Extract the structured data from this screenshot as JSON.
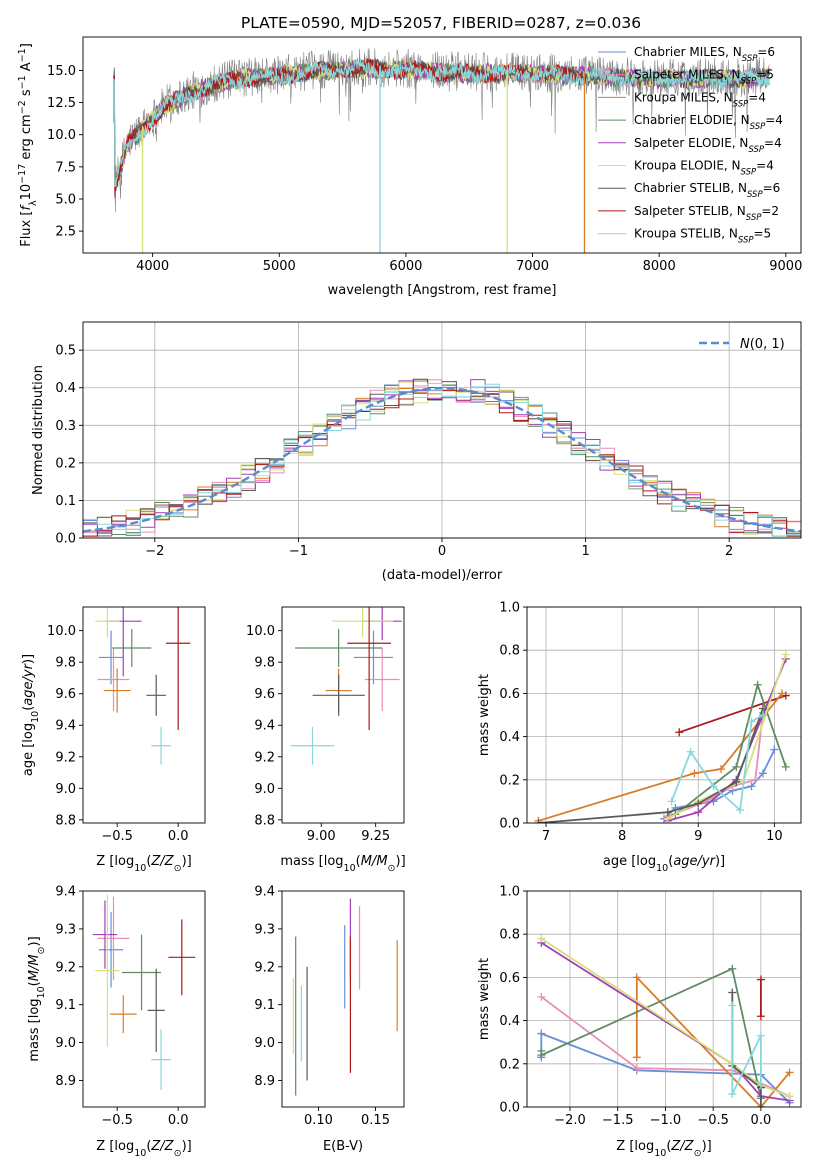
{
  "figure_title": "PLATE=0590, MJD=52057, FIBERID=0287, z=0.036",
  "colors": {
    "chabrier_miles": "#6a8fd6",
    "salpeter_miles": "#e88fb8",
    "kroupa_miles": "#d97c2a",
    "chabrier_elodie": "#5f8c64",
    "salpeter_elodie": "#a23fb5",
    "kroupa_elodie": "#d6e07a",
    "chabrier_stelib": "#5a5a5a",
    "salpeter_stelib": "#b01818",
    "kroupa_stelib": "#86d8dc",
    "normal_curve": "#5a8ad0",
    "grid": "#b0b0b0"
  },
  "chart_data": [
    {
      "id": "spectrum",
      "type": "line",
      "title": "PLATE=0590, MJD=52057, FIBERID=0287, z=0.036",
      "xlabel": "wavelength [Angstrom, rest frame]",
      "ylabel": "Flux [f_λ 10^-17 erg cm^-2 s^-1 A^-1]",
      "xlim": [
        3450,
        9120
      ],
      "ylim": [
        0.8,
        17.6
      ],
      "xticks": [
        4000,
        5000,
        6000,
        7000,
        8000,
        9000
      ],
      "yticks": [
        2.5,
        5.0,
        7.5,
        10.0,
        12.5,
        15.0
      ],
      "grid": false,
      "legend_loc": "upper right",
      "legend": [
        {
          "label": "Chabrier MILES, N",
          "sub": "SSP",
          "suffix": "=6",
          "color": "#6a8fd6"
        },
        {
          "label": "Salpeter MILES, N",
          "sub": "SSP",
          "suffix": "=5",
          "color": "#e88fb8"
        },
        {
          "label": "Kroupa MILES, N",
          "sub": "SSP",
          "suffix": "=4",
          "color": "#d97c2a"
        },
        {
          "label": "Chabrier ELODIE, N",
          "sub": "SSP",
          "suffix": "=4",
          "color": "#5f8c64"
        },
        {
          "label": "Salpeter ELODIE, N",
          "sub": "SSP",
          "suffix": "=4",
          "color": "#a23fb5"
        },
        {
          "label": "Kroupa ELODIE, N",
          "sub": "SSP",
          "suffix": "=4",
          "color": "#d6e07a"
        },
        {
          "label": "Chabrier STELIB, N",
          "sub": "SSP",
          "suffix": "=6",
          "color": "#5a5a5a"
        },
        {
          "label": "Salpeter STELIB, N",
          "sub": "SSP",
          "suffix": "=2",
          "color": "#b01818"
        },
        {
          "label": "Kroupa STELIB, N",
          "sub": "SSP",
          "suffix": "=5",
          "color": "#86d8dc"
        }
      ],
      "observed": {
        "color": "#808080",
        "x_range": [
          3690,
          8870
        ],
        "envelope": [
          [
            3700,
            6.0
          ],
          [
            3800,
            9.5
          ],
          [
            3900,
            10.5
          ],
          [
            4000,
            11.5
          ],
          [
            4100,
            12.5
          ],
          [
            4200,
            13.0
          ],
          [
            4300,
            13.5
          ],
          [
            4500,
            14.2
          ],
          [
            4700,
            14.6
          ],
          [
            5000,
            14.8
          ],
          [
            5300,
            15.2
          ],
          [
            5600,
            15.4
          ],
          [
            6000,
            15.3
          ],
          [
            6500,
            15.0
          ],
          [
            7000,
            15.0
          ],
          [
            7500,
            14.8
          ],
          [
            8000,
            14.6
          ],
          [
            8500,
            14.6
          ],
          [
            8870,
            14.7
          ]
        ],
        "noise": 1.4
      },
      "models": [
        {
          "color": "#6a8fd6",
          "x_range": [
            3690,
            8870
          ]
        },
        {
          "color": "#e88fb8",
          "x_range": [
            3690,
            8870
          ]
        },
        {
          "color": "#d97c2a",
          "x_range": [
            3690,
            7420
          ],
          "drop_at": 7410
        },
        {
          "color": "#5f8c64",
          "x_range": [
            3690,
            8870
          ]
        },
        {
          "color": "#a23fb5",
          "x_range": [
            3690,
            8870
          ]
        },
        {
          "color": "#d6e07a",
          "x_range": [
            3690,
            8870
          ],
          "gap": [
            6790,
            6810
          ]
        },
        {
          "color": "#5a5a5a",
          "x_range": [
            3690,
            8870
          ]
        },
        {
          "color": "#b01818",
          "x_range": [
            3690,
            7420
          ]
        },
        {
          "color": "#86d8dc",
          "x_range": [
            3690,
            8870
          ],
          "gap": [
            5790,
            5800
          ]
        }
      ],
      "vertical_drops": [
        {
          "x": 3920,
          "color": "#d6e07a"
        },
        {
          "x": 5795,
          "color": "#86d8dc"
        },
        {
          "x": 6800,
          "color": "#d6e07a"
        },
        {
          "x": 7410,
          "color": "#d97c2a"
        }
      ]
    },
    {
      "id": "residuals",
      "type": "histogram",
      "xlabel": "(data-model)/error",
      "ylabel": "Normed distribution",
      "xlim": [
        -2.5,
        2.5
      ],
      "ylim": [
        0,
        0.575
      ],
      "xticks": [
        -2,
        -1,
        0,
        1,
        2
      ],
      "yticks": [
        0.0,
        0.1,
        0.2,
        0.3,
        0.4,
        0.5
      ],
      "grid": true,
      "legend": [
        {
          "label": "N(0,1)",
          "color": "#5a8ad0",
          "style": "dashed"
        }
      ],
      "legend_loc": "upper right",
      "bin_width": 0.1,
      "bin_start": -2.5,
      "series": [
        {
          "name": "Chabrier MILES",
          "color": "#6a8fd6"
        },
        {
          "name": "Salpeter MILES",
          "color": "#e88fb8"
        },
        {
          "name": "Kroupa MILES",
          "color": "#d97c2a"
        },
        {
          "name": "Chabrier ELODIE",
          "color": "#5f8c64"
        },
        {
          "name": "Salpeter ELODIE",
          "color": "#a23fb5"
        },
        {
          "name": "Kroupa ELODIE",
          "color": "#d6e07a"
        },
        {
          "name": "Chabrier STELIB",
          "color": "#5a5a5a"
        },
        {
          "name": "Salpeter STELIB",
          "color": "#b01818"
        },
        {
          "name": "Kroupa STELIB",
          "color": "#86d8dc"
        }
      ]
    },
    {
      "id": "age_vs_Z",
      "type": "errorbar",
      "xlabel": "Z [log10(Z/Z☉)]",
      "ylabel": "age [log10(age/yr)]",
      "xlim": [
        -0.78,
        0.22
      ],
      "ylim": [
        8.78,
        10.15
      ],
      "xticks": [
        -0.5,
        0.0
      ],
      "yticks": [
        8.8,
        9.0,
        9.2,
        9.4,
        9.6,
        9.8,
        10.0
      ],
      "points": [
        {
          "x": -0.55,
          "y": 9.83,
          "xerr": 0.1,
          "yerr": 0.17,
          "color": "#6a8fd6"
        },
        {
          "x": -0.53,
          "y": 9.69,
          "xerr": 0.13,
          "yerr": 0.2,
          "color": "#e88fb8"
        },
        {
          "x": -0.5,
          "y": 9.62,
          "xerr": 0.11,
          "yerr": 0.14,
          "color": "#d97c2a"
        },
        {
          "x": -0.38,
          "y": 9.89,
          "xerr": 0.16,
          "yerr": 0.12,
          "color": "#5f8c64"
        },
        {
          "x": -0.45,
          "y": 10.06,
          "xerr": 0.15,
          "yerr": 0.35,
          "color": "#a23fb5"
        },
        {
          "x": -0.58,
          "y": 10.06,
          "xerr": 0.1,
          "yerr": 0.1,
          "color": "#d6e07a"
        },
        {
          "x": -0.18,
          "y": 9.59,
          "xerr": 0.08,
          "yerr": 0.13,
          "color": "#5a5a5a"
        },
        {
          "x": 0.0,
          "y": 9.92,
          "xerr": 0.1,
          "yerr": 0.55,
          "color": "#b01818"
        },
        {
          "x": -0.14,
          "y": 9.27,
          "xerr": 0.08,
          "yerr": 0.12,
          "color": "#86d8dc"
        }
      ]
    },
    {
      "id": "age_vs_mass",
      "type": "errorbar",
      "xlabel": "mass [log10(M/M☉)]",
      "ylabel": "",
      "xlim": [
        8.82,
        9.38
      ],
      "ylim": [
        8.78,
        10.15
      ],
      "xticks": [
        9.0,
        9.25
      ],
      "yticks": [
        8.8,
        9.0,
        9.2,
        9.4,
        9.6,
        9.8,
        10.0
      ],
      "points": [
        {
          "x": 9.24,
          "y": 9.83,
          "xerr": 0.09,
          "yerr": 0.17,
          "color": "#6a8fd6"
        },
        {
          "x": 9.28,
          "y": 9.69,
          "xerr": 0.08,
          "yerr": 0.2,
          "color": "#e88fb8"
        },
        {
          "x": 9.08,
          "y": 9.62,
          "xerr": 0.06,
          "yerr": 0.14,
          "color": "#d97c2a"
        },
        {
          "x": 9.08,
          "y": 9.89,
          "xerr": 0.2,
          "yerr": 0.12,
          "color": "#5f8c64"
        },
        {
          "x": 9.28,
          "y": 10.06,
          "xerr": 0.09,
          "yerr": 0.12,
          "color": "#a23fb5"
        },
        {
          "x": 9.19,
          "y": 10.06,
          "xerr": 0.14,
          "yerr": 0.1,
          "color": "#d6e07a"
        },
        {
          "x": 9.08,
          "y": 9.59,
          "xerr": 0.12,
          "yerr": 0.13,
          "color": "#5a5a5a"
        },
        {
          "x": 9.22,
          "y": 9.92,
          "xerr": 0.1,
          "yerr": 0.55,
          "color": "#b01818"
        },
        {
          "x": 8.96,
          "y": 9.27,
          "xerr": 0.1,
          "yerr": 0.12,
          "color": "#86d8dc"
        }
      ]
    },
    {
      "id": "weight_vs_age",
      "type": "line",
      "xlabel": "age  [log10(age/yr)]",
      "ylabel": "mass weight",
      "xlim": [
        6.75,
        10.35
      ],
      "ylim": [
        0,
        1.0
      ],
      "xticks": [
        7,
        8,
        9,
        10
      ],
      "yticks": [
        0.0,
        0.2,
        0.4,
        0.6,
        0.8,
        1.0
      ],
      "grid": true,
      "series": [
        {
          "color": "#b01818",
          "x": [
            8.75,
            10.15
          ],
          "y": [
            0.42,
            0.59
          ]
        },
        {
          "color": "#6a8fd6",
          "x": [
            8.55,
            8.7,
            9.2,
            9.45,
            9.7,
            9.85,
            10.0
          ],
          "y": [
            0.02,
            0.07,
            0.1,
            0.15,
            0.17,
            0.23,
            0.34
          ]
        },
        {
          "color": "#e88fb8",
          "x": [
            8.6,
            9.1,
            9.45,
            9.75,
            9.85
          ],
          "y": [
            0.03,
            0.1,
            0.17,
            0.2,
            0.51
          ]
        },
        {
          "color": "#d97c2a",
          "x": [
            6.9,
            8.95,
            9.3,
            10.1
          ],
          "y": [
            0.01,
            0.23,
            0.25,
            0.6
          ]
        },
        {
          "color": "#5f8c64",
          "x": [
            8.7,
            9.5,
            9.78,
            10.15
          ],
          "y": [
            0.04,
            0.26,
            0.64,
            0.26
          ]
        },
        {
          "color": "#a23fb5",
          "x": [
            8.6,
            9.0,
            9.5,
            10.15
          ],
          "y": [
            0.01,
            0.05,
            0.2,
            0.76
          ]
        },
        {
          "color": "#d6e07a",
          "x": [
            8.6,
            9.0,
            9.6,
            10.15
          ],
          "y": [
            0.02,
            0.1,
            0.2,
            0.78
          ]
        },
        {
          "color": "#5a5a5a",
          "x": [
            6.9,
            8.6,
            9.0,
            9.5,
            9.85
          ],
          "y": [
            0.0,
            0.05,
            0.09,
            0.19,
            0.53
          ]
        },
        {
          "color": "#86d8dc",
          "x": [
            8.65,
            8.9,
            9.2,
            9.55,
            9.7,
            9.85
          ],
          "y": [
            0.1,
            0.33,
            0.17,
            0.06,
            0.47,
            0.5
          ]
        }
      ]
    },
    {
      "id": "mass_vs_Z",
      "type": "errorbar",
      "xlabel": "Z [log10(Z/Z☉)]",
      "ylabel": "mass [log10(M/M☉)]",
      "xlim": [
        -0.78,
        0.22
      ],
      "ylim": [
        8.83,
        9.4
      ],
      "xticks": [
        -0.5,
        0.0
      ],
      "yticks": [
        8.9,
        9.0,
        9.1,
        9.2,
        9.3,
        9.4
      ],
      "points": [
        {
          "x": -0.55,
          "y": 9.245,
          "xerr": 0.1,
          "yerr": 0.1,
          "color": "#6a8fd6"
        },
        {
          "x": -0.53,
          "y": 9.275,
          "xerr": 0.13,
          "yerr": 0.11,
          "color": "#e88fb8"
        },
        {
          "x": -0.45,
          "y": 9.075,
          "xerr": 0.11,
          "yerr": 0.05,
          "color": "#d97c2a"
        },
        {
          "x": -0.3,
          "y": 9.185,
          "xerr": 0.16,
          "yerr": 0.1,
          "color": "#5f8c64"
        },
        {
          "x": -0.6,
          "y": 9.285,
          "xerr": 0.1,
          "yerr": 0.09,
          "color": "#a23fb5"
        },
        {
          "x": -0.58,
          "y": 9.19,
          "xerr": 0.1,
          "yerr": 0.2,
          "color": "#d6e07a"
        },
        {
          "x": -0.18,
          "y": 9.085,
          "xerr": 0.07,
          "yerr": 0.11,
          "color": "#5a5a5a"
        },
        {
          "x": 0.03,
          "y": 9.225,
          "xerr": 0.11,
          "yerr": 0.1,
          "color": "#b01818"
        },
        {
          "x": -0.14,
          "y": 8.955,
          "xerr": 0.08,
          "yerr": 0.08,
          "color": "#86d8dc"
        }
      ]
    },
    {
      "id": "mass_vs_ebv",
      "type": "errorbar",
      "xlabel": "E(B-V)",
      "ylabel": "",
      "xlim": [
        0.068,
        0.175
      ],
      "ylim": [
        8.83,
        9.4
      ],
      "xticks": [
        0.1,
        0.15
      ],
      "yticks": [
        8.9,
        9.0,
        9.1,
        9.2,
        9.3,
        9.4
      ],
      "points": [
        {
          "x": 0.123,
          "y": 9.2,
          "yerr": 0.11,
          "color": "#6a8fd6"
        },
        {
          "x": 0.136,
          "y": 9.25,
          "yerr": 0.11,
          "color": "#e88fb8"
        },
        {
          "x": 0.169,
          "y": 9.15,
          "yerr": 0.12,
          "color": "#d97c2a"
        },
        {
          "x": 0.08,
          "y": 9.07,
          "yerr": 0.21,
          "color": "#5f8c64"
        },
        {
          "x": 0.128,
          "y": 9.27,
          "yerr": 0.11,
          "color": "#a23fb5"
        },
        {
          "x": 0.078,
          "y": 9.07,
          "yerr": 0.1,
          "color": "#d6e07a"
        },
        {
          "x": 0.09,
          "y": 9.05,
          "yerr": 0.15,
          "color": "#5a5a5a"
        },
        {
          "x": 0.128,
          "y": 9.1,
          "yerr": 0.18,
          "color": "#b01818"
        },
        {
          "x": 0.085,
          "y": 9.05,
          "yerr": 0.1,
          "color": "#86d8dc"
        }
      ]
    },
    {
      "id": "weight_vs_Z",
      "type": "line",
      "xlabel": "Z [log10(Z/Z☉)]",
      "ylabel": "mass weight",
      "xlim": [
        -2.45,
        0.42
      ],
      "ylim": [
        0,
        1.0
      ],
      "xticks": [
        -2.0,
        -1.5,
        -1.0,
        -0.5,
        0.0
      ],
      "yticks": [
        0.0,
        0.2,
        0.4,
        0.6,
        0.8,
        1.0
      ],
      "grid": true,
      "series": [
        {
          "color": "#b01818",
          "x": [
            0.0,
            0.0
          ],
          "y": [
            0.42,
            0.59
          ]
        },
        {
          "color": "#6a8fd6",
          "x": [
            -2.3,
            -2.3,
            -1.3,
            0.0,
            0.3
          ],
          "y": [
            0.23,
            0.34,
            0.17,
            0.15,
            0.02
          ]
        },
        {
          "color": "#e88fb8",
          "x": [
            -2.3,
            -1.3,
            -0.3,
            0.3
          ],
          "y": [
            0.51,
            0.18,
            0.17,
            0.05
          ]
        },
        {
          "color": "#d97c2a",
          "x": [
            -1.3,
            -1.3,
            0.0,
            0.3
          ],
          "y": [
            0.23,
            0.6,
            0.0,
            0.16
          ]
        },
        {
          "color": "#5f8c64",
          "x": [
            -2.3,
            -2.3,
            -0.3,
            0.0
          ],
          "y": [
            0.26,
            0.24,
            0.64,
            0.04
          ]
        },
        {
          "color": "#a23fb5",
          "x": [
            -2.3,
            -0.3,
            0.0,
            0.3
          ],
          "y": [
            0.76,
            0.2,
            0.05,
            0.03
          ]
        },
        {
          "color": "#d6e07a",
          "x": [
            -2.3,
            -0.3,
            0.0,
            0.3
          ],
          "y": [
            0.78,
            0.2,
            0.1,
            0.05
          ]
        },
        {
          "color": "#5a5a5a",
          "x": [
            -0.3,
            -0.3,
            0.0,
            0.0
          ],
          "y": [
            0.53,
            0.19,
            0.09,
            0.0
          ]
        },
        {
          "color": "#86d8dc",
          "x": [
            -0.3,
            -0.3,
            0.0,
            0.0
          ],
          "y": [
            0.47,
            0.06,
            0.33,
            0.1
          ]
        }
      ]
    }
  ]
}
